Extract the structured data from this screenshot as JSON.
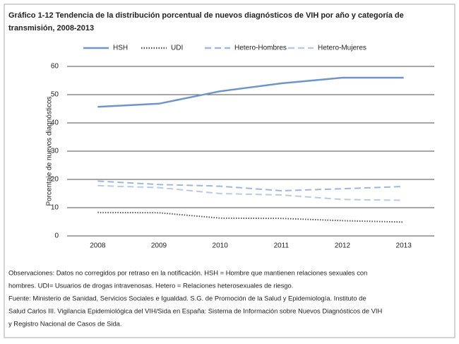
{
  "chart_data": {
    "type": "line",
    "title": [
      "Gráfico 1-12 Tendencia de la distribución porcentual de nuevos diagnósticos de VIH por año y categoría de",
      "transmisión, 2008-2013"
    ],
    "y_label": "Porcentaje de nuevos diagnósticos",
    "categories": [
      "2008",
      "2009",
      "2010",
      "2011",
      "2012",
      "2013"
    ],
    "series": [
      {
        "name": "HSH",
        "color": "#6f96cc",
        "style": "solid",
        "values": [
          45.7,
          46.8,
          51.2,
          54,
          56,
          56
        ]
      },
      {
        "name": "UDI",
        "color": "#555555",
        "style": "dotted",
        "values": [
          8.3,
          8.2,
          6.3,
          6.2,
          5.4,
          4.9
        ]
      },
      {
        "name": "Hetero-Hombres",
        "color": "#9db8dc",
        "style": "dashed",
        "values": [
          19.4,
          18.2,
          17.6,
          16,
          16.7,
          17.5
        ]
      },
      {
        "name": "Hetero-Mujeres",
        "color": "#b7cbe6",
        "style": "dashed",
        "values": [
          17.8,
          17.1,
          15,
          14.5,
          12.9,
          12.6
        ]
      }
    ],
    "ylim": [
      0,
      60
    ],
    "yticks": [
      0,
      10,
      20,
      30,
      40,
      50,
      60
    ],
    "grid": true,
    "notes": [
      "Observaciones: Datos no corregidos por retraso en la notificación. HSH = Hombre que mantienen relaciones sexuales con",
      "hombres. UDI= Usuarios de drogas intravenosas. Hetero = Relaciones heterosexuales de riesgo.",
      "Fuente: Ministerio de Sanidad, Servicios Sociales e Igualdad.  S.G. de Promoción de la Salud y Epidemiología. Instituto de",
      "Salud Carlos III. Vigilancia Epidemiológica del VIH/Sida en España: Sistema de Información sobre Nuevos Diagnósticos de VIH",
      "y Registro Nacional de Casos de Sida."
    ]
  }
}
